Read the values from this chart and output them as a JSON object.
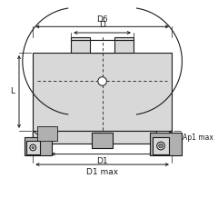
{
  "bg_color": "#ffffff",
  "line_color": "#1a1a1a",
  "gray_fill": "#c8c8c8",
  "gray_light": "#d8d8d8",
  "gray_med": "#b0b0b0",
  "gray_dark": "#888888",
  "dim_color": "#1a1a1a",
  "labels": {
    "D6": "D6",
    "D": "D",
    "L": "L",
    "D1": "D1",
    "D1max": "D1 max",
    "Ap1max": "Ap1 max"
  },
  "figsize": [
    2.4,
    2.4
  ],
  "dpi": 100
}
